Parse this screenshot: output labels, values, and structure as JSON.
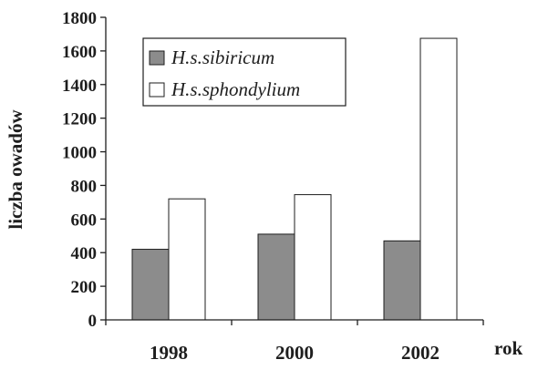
{
  "chart_data": {
    "type": "bar",
    "categories": [
      "1998",
      "2000",
      "2002"
    ],
    "series": [
      {
        "name": "H.s.sibiricum",
        "values": [
          420,
          510,
          470
        ],
        "color": "#8c8c8c"
      },
      {
        "name": "H.s.sphondylium",
        "values": [
          720,
          745,
          1675
        ],
        "color": "#ffffff"
      }
    ],
    "xlabel": "rok",
    "ylabel": "liczba owadów",
    "ylim": [
      0,
      1800
    ],
    "yticks": [
      "0",
      "200",
      "400",
      "600",
      "800",
      "1000",
      "1200",
      "1400",
      "1600",
      "1800"
    ],
    "grid": false,
    "legend_position": "top-left"
  }
}
